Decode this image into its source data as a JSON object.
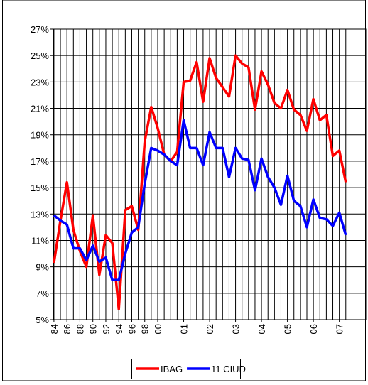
{
  "chart_data": {
    "type": "line",
    "categories": [
      "84",
      null,
      "86",
      null,
      "88",
      null,
      "90",
      null,
      "92",
      null,
      "94",
      null,
      "96",
      null,
      "98",
      null,
      "00",
      null,
      null,
      null,
      "01",
      null,
      null,
      null,
      "02",
      null,
      null,
      null,
      "03",
      null,
      null,
      null,
      "04",
      null,
      null,
      null,
      "05",
      null,
      null,
      null,
      "06",
      null,
      null,
      null,
      "07",
      null
    ],
    "series": [
      {
        "name": "IBAG",
        "color": "#ff0000",
        "values": [
          9.3,
          12.5,
          15.4,
          11.8,
          10.2,
          9.0,
          12.9,
          8.4,
          11.4,
          10.8,
          5.8,
          13.3,
          13.6,
          11.8,
          18.5,
          21.1,
          19.5,
          17.5,
          17.0,
          17.7,
          23.0,
          23.1,
          24.5,
          21.5,
          24.8,
          23.3,
          22.6,
          21.9,
          25.0,
          24.4,
          24.1,
          20.9,
          23.8,
          22.8,
          21.4,
          21.0,
          22.4,
          20.9,
          20.5,
          19.3,
          21.7,
          20.1,
          20.5,
          17.4,
          17.8,
          15.4
        ]
      },
      {
        "name": "11 CIUD",
        "color": "#0000ff",
        "values": [
          12.9,
          12.5,
          12.2,
          10.4,
          10.4,
          9.5,
          10.6,
          9.4,
          9.7,
          8.0,
          8.0,
          10.0,
          11.6,
          12.0,
          15.3,
          18.0,
          17.8,
          17.5,
          17.0,
          16.7,
          20.1,
          18.0,
          18.0,
          16.7,
          19.2,
          18.0,
          18.0,
          15.8,
          18.0,
          17.2,
          17.1,
          14.8,
          17.2,
          15.8,
          15.0,
          13.7,
          15.9,
          14.0,
          13.6,
          12.0,
          14.1,
          12.7,
          12.6,
          12.1,
          13.1,
          11.4
        ]
      }
    ],
    "ylim": [
      5,
      27
    ],
    "yticks": [
      {
        "value": 5,
        "label": "5%"
      },
      {
        "value": 7,
        "label": "7%"
      },
      {
        "value": 9,
        "label": "9%"
      },
      {
        "value": 11,
        "label": "11%"
      },
      {
        "value": 13,
        "label": "13%"
      },
      {
        "value": 15,
        "label": "15%"
      },
      {
        "value": 17,
        "label": "17%"
      },
      {
        "value": 19,
        "label": "19%"
      },
      {
        "value": 21,
        "label": "21%"
      },
      {
        "value": 23,
        "label": "23%"
      },
      {
        "value": 25,
        "label": "25%"
      },
      {
        "value": 27,
        "label": "27%"
      }
    ],
    "grid": true,
    "legend": "bottom"
  }
}
